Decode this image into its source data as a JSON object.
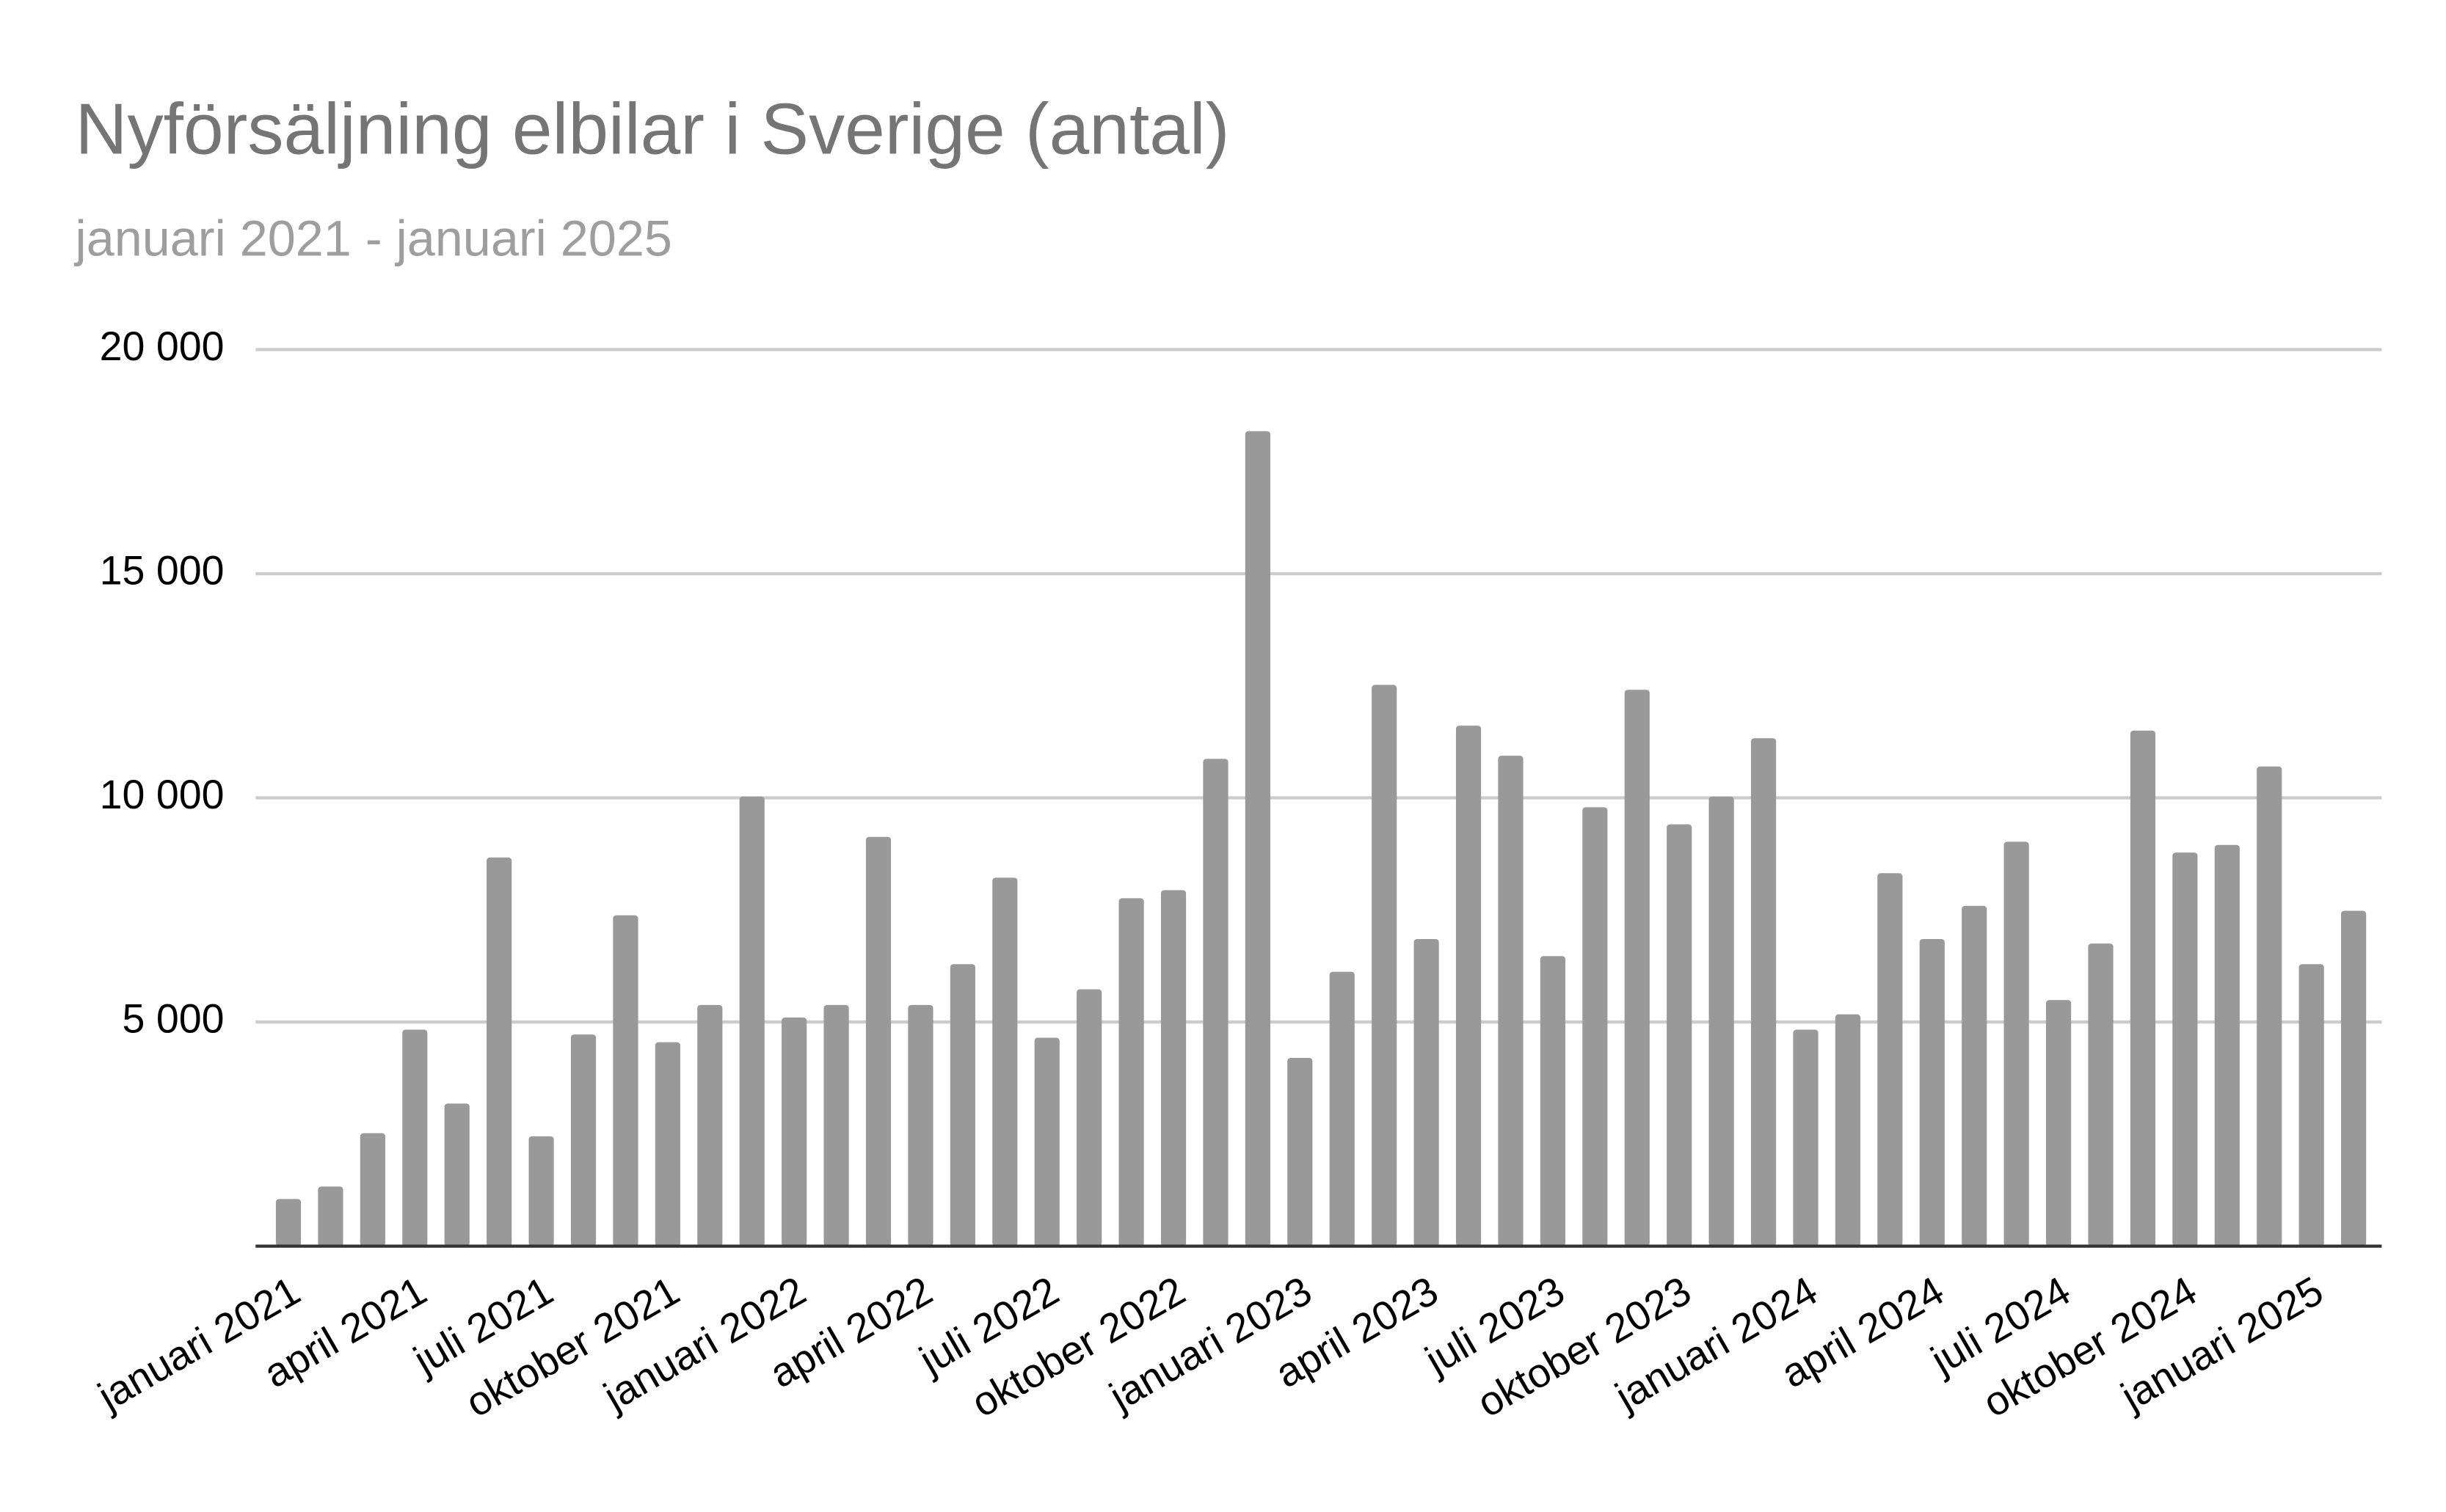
{
  "chart_data": {
    "type": "bar",
    "title": "Nyförsäljning elbilar i Sverige (antal)",
    "subtitle": "januari 2021 - januari 2025",
    "categories": [
      "januari 2021",
      null,
      null,
      "april 2021",
      null,
      null,
      "juli 2021",
      null,
      null,
      "oktober 2021",
      null,
      null,
      "januari 2022",
      null,
      null,
      "april 2022",
      null,
      null,
      "juli 2022",
      null,
      null,
      "oktober 2022",
      null,
      null,
      "januari 2023",
      null,
      null,
      "april 2023",
      null,
      null,
      "juli 2023",
      null,
      null,
      "oktober 2023",
      null,
      null,
      "januari 2024",
      null,
      null,
      "april 2024",
      null,
      null,
      "juli 2024",
      null,
      null,
      "oktober 2024",
      null,
      null,
      "januari 2025",
      null
    ],
    "values": [
      1050,
      1330,
      2520,
      4830,
      3180,
      8670,
      2450,
      4720,
      7380,
      4550,
      5380,
      10030,
      5100,
      5380,
      9130,
      5380,
      6290,
      8220,
      4650,
      5730,
      7760,
      7940,
      10870,
      18180,
      4200,
      6120,
      12520,
      6850,
      11610,
      10940,
      6470,
      9790,
      12410,
      9410,
      10030,
      11330,
      4830,
      5170,
      8320,
      6850,
      7590,
      9020,
      5490,
      6750,
      11500,
      8780,
      8950,
      10700,
      6290,
      7480
    ],
    "color": "#999999",
    "ylim": [
      0,
      20000
    ],
    "yticks": [
      {
        "value": 5000,
        "label": "5 000"
      },
      {
        "value": 10000,
        "label": "10 000"
      },
      {
        "value": 15000,
        "label": "15 000"
      },
      {
        "value": 20000,
        "label": "20 000"
      }
    ],
    "grid": true
  }
}
